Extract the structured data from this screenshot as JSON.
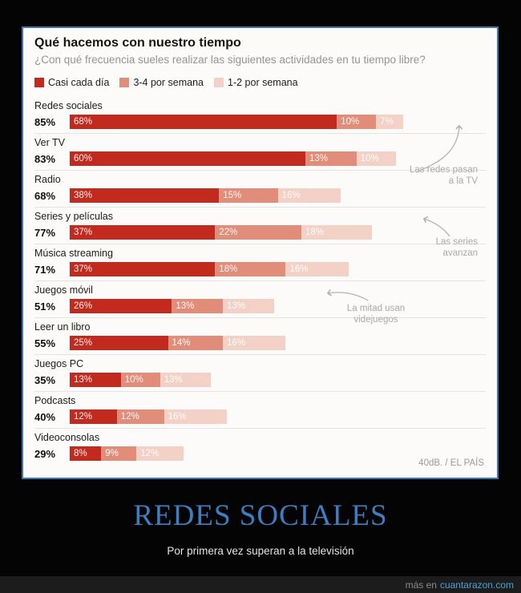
{
  "poster": {
    "title": "REDES SOCIALES",
    "subtitle": "Por primera vez superan a la televisión"
  },
  "footer": {
    "prefix": "más en",
    "site": "cuantarazon.com"
  },
  "chart_data": {
    "type": "bar",
    "variant": "horizontal-stacked",
    "title": "Qué hacemos con nuestro tiempo",
    "subtitle": "¿Con qué frecuencia sueles realizar las siguientes actividades en tu tiempo libre?",
    "unit": "%",
    "xlim": [
      0,
      100
    ],
    "grid": false,
    "legend_position": "top",
    "legend": [
      "Casi cada día",
      "3-4 por semana",
      "1-2 por semana"
    ],
    "colors": [
      "#c22a1e",
      "#e28d79",
      "#f3d1c7"
    ],
    "categories": [
      "Redes sociales",
      "Ver TV",
      "Radio",
      "Series y películas",
      "Música streaming",
      "Juegos móvil",
      "Leer un libro",
      "Juegos PC",
      "Podcasts",
      "Videoconsolas"
    ],
    "totals": [
      "85%",
      "83%",
      "68%",
      "77%",
      "71%",
      "51%",
      "55%",
      "35%",
      "40%",
      "29%"
    ],
    "series": [
      {
        "name": "Casi cada día",
        "values": [
          68,
          60,
          38,
          37,
          37,
          26,
          25,
          13,
          12,
          8
        ]
      },
      {
        "name": "3-4 por semana",
        "values": [
          10,
          13,
          15,
          22,
          18,
          13,
          14,
          10,
          12,
          9
        ]
      },
      {
        "name": "1-2 por semana",
        "values": [
          7,
          10,
          16,
          18,
          16,
          13,
          16,
          13,
          16,
          12
        ]
      }
    ],
    "annotations": [
      {
        "lines": [
          "Las redes pasan",
          "a la TV"
        ]
      },
      {
        "lines": [
          "Las series",
          "avanzan"
        ]
      },
      {
        "lines": [
          "La mitad usan",
          "videjuegos"
        ]
      }
    ],
    "source": "40dB. / EL PAÍS"
  }
}
